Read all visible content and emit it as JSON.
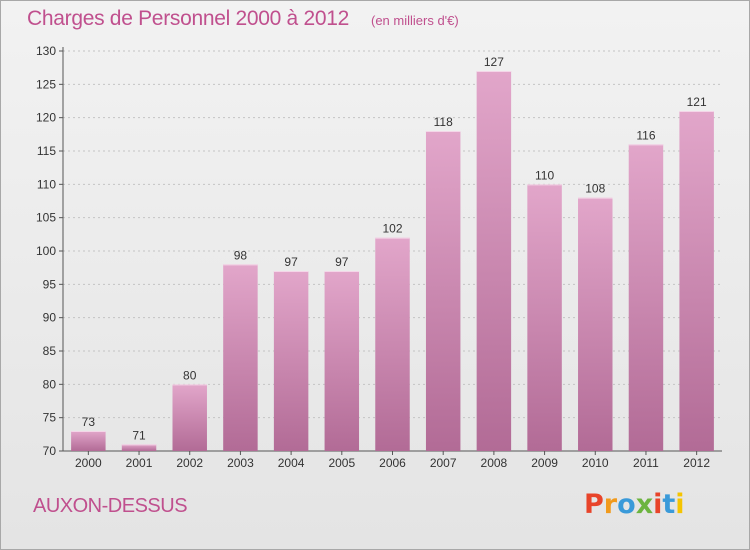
{
  "header": {
    "title": "Charges de Personnel 2000 à 2012",
    "subtitle": "(en milliers d'€)"
  },
  "footer": {
    "place": "AUXON-DESSUS",
    "logo": "Proxiti",
    "logo_colors": [
      "#e8442a",
      "#f19a1c",
      "#3a9ad9",
      "#6cb43f",
      "#e8442a",
      "#3a9ad9",
      "#f5c400"
    ]
  },
  "colors": {
    "bar_top": "#e2a6ca",
    "bar_bottom": "#b26b96",
    "bar_edge": "#f4d6e8",
    "text": "#333333",
    "accent": "#c0508e"
  },
  "chart_data": {
    "type": "bar",
    "categories": [
      "2000",
      "2001",
      "2002",
      "2003",
      "2004",
      "2005",
      "2006",
      "2007",
      "2008",
      "2009",
      "2010",
      "2011",
      "2012"
    ],
    "values": [
      73,
      71,
      80,
      98,
      97,
      97,
      102,
      118,
      127,
      110,
      108,
      116,
      121
    ],
    "data_labels": [
      "73",
      "71",
      "80",
      "98",
      "97",
      "97",
      "102",
      "118",
      "127",
      "110",
      "108",
      "116",
      "121"
    ],
    "ylim": [
      70,
      130
    ],
    "yticks": [
      70,
      75,
      80,
      85,
      90,
      95,
      100,
      105,
      110,
      115,
      120,
      125,
      130
    ],
    "title": "Charges de Personnel 2000 à 2012",
    "xlabel": "",
    "ylabel": "",
    "grid": "horizontal-dashed",
    "legend": "none"
  }
}
